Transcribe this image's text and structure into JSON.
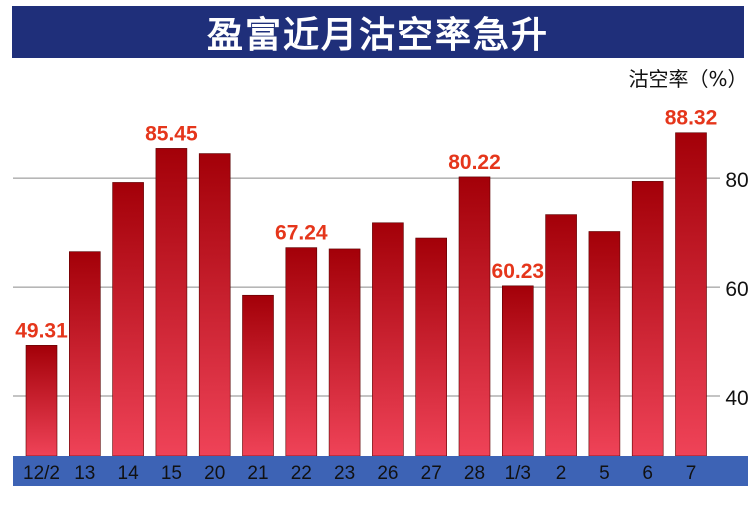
{
  "chart_data": {
    "type": "bar",
    "title": "盈富近月沽空率急升",
    "ylabel": "沽空率（%）",
    "categories": [
      "12/2",
      "13",
      "14",
      "15",
      "20",
      "21",
      "22",
      "23",
      "26",
      "27",
      "28",
      "1/3",
      "2",
      "5",
      "6",
      "7"
    ],
    "values": [
      49.31,
      66.5,
      79.2,
      85.45,
      84.5,
      58.5,
      67.24,
      67.0,
      71.8,
      69.0,
      80.22,
      60.23,
      73.3,
      70.2,
      79.4,
      88.32
    ],
    "labeled_values": {
      "0": "49.31",
      "3": "85.45",
      "6": "67.24",
      "10": "80.22",
      "11": "60.23",
      "15": "88.32"
    },
    "yticks": [
      40,
      60,
      80
    ],
    "ylim": [
      29,
      98
    ],
    "grid": true,
    "legend": "none",
    "colors": {
      "bar_top": "#a30008",
      "bar_bottom": "#ef4358",
      "label": "#e5361b",
      "axis_band": "#3d63b5",
      "title_band": "#1f2f7a",
      "grid": "#8a8a8a"
    }
  }
}
